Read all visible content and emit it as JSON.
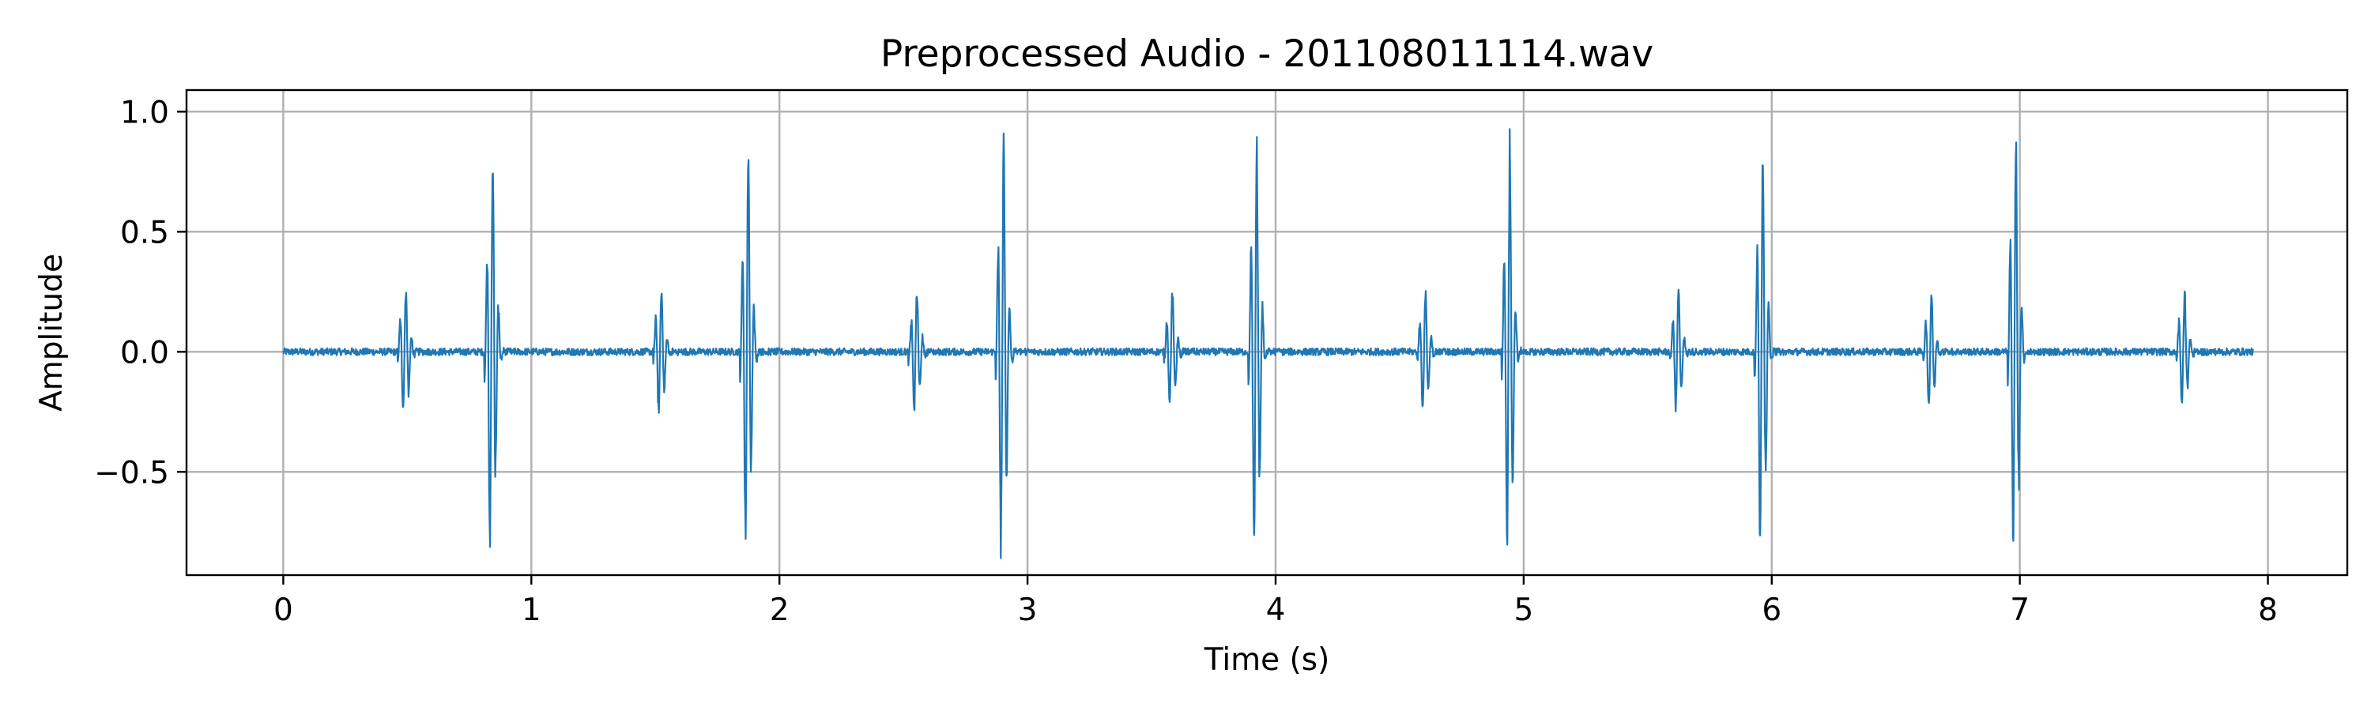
{
  "chart_data": {
    "type": "line",
    "title": "Preprocessed Audio - 201108011114.wav",
    "xlabel": "Time (s)",
    "ylabel": "Amplitude",
    "xlim": [
      -0.39,
      8.32
    ],
    "ylim": [
      -0.93,
      1.09
    ],
    "xticks": [
      0,
      1,
      2,
      3,
      4,
      5,
      6,
      7,
      8
    ],
    "xtick_labels": [
      "0",
      "1",
      "2",
      "3",
      "4",
      "5",
      "6",
      "7",
      "8"
    ],
    "yticks": [
      -0.5,
      0.0,
      0.5,
      1.0
    ],
    "ytick_labels": [
      "−0.5",
      "0.0",
      "0.5",
      "1.0"
    ],
    "grid": true,
    "line_color": "#1f77b4",
    "duration": 7.94,
    "noise_amplitude": 0.015,
    "events": [
      {
        "t": 0.49,
        "amp": 0.3
      },
      {
        "t": 0.84,
        "amp": 0.97
      },
      {
        "t": 1.52,
        "amp": 0.32
      },
      {
        "t": 1.87,
        "amp": 0.97
      },
      {
        "t": 2.55,
        "amp": 0.3
      },
      {
        "t": 2.9,
        "amp": 1.0
      },
      {
        "t": 3.58,
        "amp": 0.29
      },
      {
        "t": 3.92,
        "amp": 0.97
      },
      {
        "t": 4.6,
        "amp": 0.3
      },
      {
        "t": 4.94,
        "amp": 0.98
      },
      {
        "t": 5.62,
        "amp": 0.29
      },
      {
        "t": 5.96,
        "amp": 0.98
      },
      {
        "t": 6.64,
        "amp": 0.29
      },
      {
        "t": 6.98,
        "amp": 1.0
      },
      {
        "t": 7.66,
        "amp": 0.29
      }
    ]
  }
}
